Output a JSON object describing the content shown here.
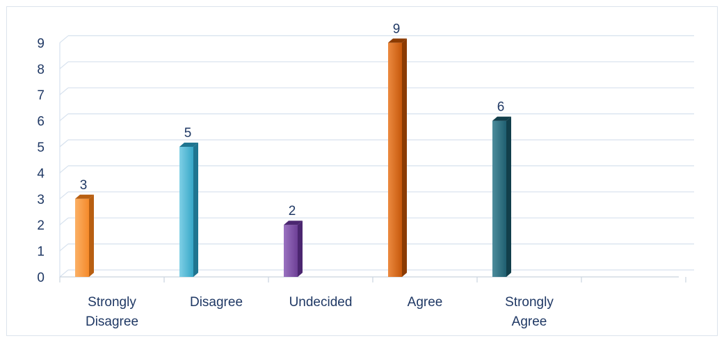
{
  "chart_data": {
    "type": "bar",
    "title": "",
    "xlabel": "",
    "ylabel": "",
    "ylim": [
      0,
      9
    ],
    "y_ticks": [
      "0",
      "1",
      "2",
      "3",
      "4",
      "5",
      "6",
      "7",
      "8",
      "9"
    ],
    "grid": true,
    "legend": "none",
    "categories": [
      [
        "Strongly",
        "Disagree"
      ],
      [
        "Disagree"
      ],
      [
        "Undecided"
      ],
      [
        "Agree"
      ],
      [
        "Strongly",
        "Agree"
      ]
    ],
    "values": [
      3,
      5,
      2,
      9,
      6
    ],
    "data_labels": [
      "3",
      "5",
      "2",
      "9",
      "6"
    ],
    "colors": [
      "#f58a2b",
      "#36a6c7",
      "#6d3f96",
      "#c5570a",
      "#1f5f70"
    ],
    "colors_light": [
      "#fbb065",
      "#7fd0e6",
      "#9a72c0",
      "#ec8a40",
      "#4d8c9c"
    ],
    "colors_dark": [
      "#b85f12",
      "#1f7590",
      "#4b2670",
      "#8b3b03",
      "#123f4b"
    ]
  }
}
